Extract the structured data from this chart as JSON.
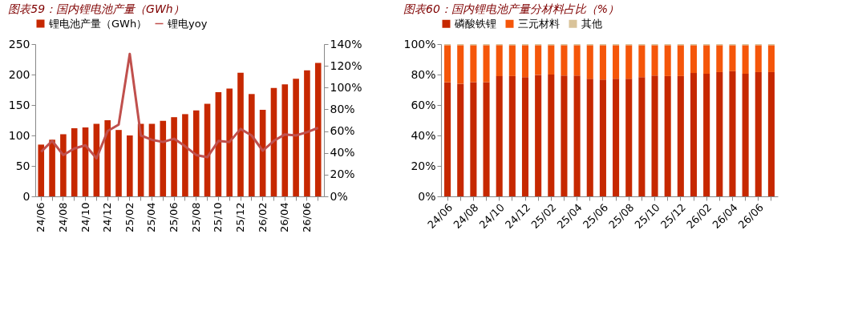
{
  "chart_data": [
    {
      "type": "bar",
      "title": "图表59：国内锂电池产量（GWh）",
      "categories": [
        "24/06",
        null,
        "24/08",
        null,
        "24/10",
        null,
        "24/12",
        null,
        "25/02",
        null,
        "25/04",
        null,
        "25/06",
        null,
        "25/08",
        null,
        "25/10",
        null,
        "25/12",
        null,
        "26/02",
        null,
        "26/04",
        null,
        "26/06",
        null
      ],
      "series": [
        {
          "name": "锂电池产量（GWh）",
          "type": "bar",
          "axis": "y",
          "color": "#c62800",
          "values": [
            85,
            93,
            102,
            112,
            113,
            119,
            125,
            109,
            100,
            119,
            119,
            124,
            130,
            135,
            141,
            152,
            171,
            177,
            203,
            168,
            142,
            178,
            184,
            193,
            207,
            219
          ]
        },
        {
          "name": "锂电yoy",
          "type": "line",
          "axis": "y2",
          "color": "#c0504d",
          "values": [
            41,
            51,
            38,
            44,
            47,
            35,
            60,
            66,
            131,
            56,
            52,
            50,
            53,
            46,
            38,
            36,
            51,
            50,
            62,
            56,
            42,
            51,
            57,
            56,
            59,
            63
          ]
        }
      ],
      "ylim": [
        0,
        250
      ],
      "yticks": [
        0,
        50,
        100,
        150,
        200,
        250
      ],
      "y2lim": [
        0,
        140
      ],
      "y2ticks": [
        {
          "value": 0,
          "label": "0%"
        },
        {
          "value": 20,
          "label": "20%"
        },
        {
          "value": 40,
          "label": "40%"
        },
        {
          "value": 60,
          "label": "60%"
        },
        {
          "value": 80,
          "label": "80%"
        },
        {
          "value": 100,
          "label": "100%"
        },
        {
          "value": 120,
          "label": "120%"
        },
        {
          "value": 140,
          "label": "140%"
        }
      ],
      "legend": "top",
      "grid": false,
      "marker": "none",
      "line_style": "solid"
    },
    {
      "type": "bar",
      "title": "图表60：国内锂电池产量分材料占比（%）",
      "stacked": true,
      "categories": [
        "24/06",
        null,
        "24/08",
        null,
        "24/10",
        null,
        "24/12",
        null,
        "25/02",
        null,
        "25/04",
        null,
        "25/06",
        null,
        "25/08",
        null,
        "25/10",
        null,
        "25/12",
        null,
        "26/02",
        null,
        "26/04",
        null,
        "26/06",
        null
      ],
      "series": [
        {
          "name": "磷酸铁锂",
          "color": "#c62800",
          "values": [
            74.9,
            74,
            75,
            75,
            79,
            79,
            78.3,
            79.8,
            80,
            79.4,
            79.4,
            77.2,
            76.7,
            77.2,
            77.2,
            78.3,
            79.4,
            79,
            79,
            81,
            80.5,
            81.6,
            82.2,
            80.5,
            81.6,
            81.6
          ]
        },
        {
          "name": "三元材料",
          "color": "#f5560a",
          "values": [
            24.4,
            25.3,
            24.3,
            24.3,
            20.3,
            20.3,
            21,
            19.5,
            19.3,
            19.9,
            19.9,
            22.1,
            22.6,
            22.1,
            22.1,
            21,
            19.9,
            20.3,
            20.3,
            18.3,
            18.8,
            17.7,
            17.1,
            18.8,
            17.7,
            17.7
          ]
        },
        {
          "name": "其他",
          "color": "#d9c39a",
          "values": [
            0.7,
            0.7,
            0.7,
            0.7,
            0.7,
            0.7,
            0.7,
            0.7,
            0.7,
            0.7,
            0.7,
            0.7,
            0.7,
            0.7,
            0.7,
            0.7,
            0.7,
            0.7,
            0.7,
            0.7,
            0.7,
            0.7,
            0.7,
            0.7,
            0.7,
            0.7
          ]
        }
      ],
      "ylim": [
        0,
        100
      ],
      "yticks": [
        {
          "value": 0,
          "label": "0%"
        },
        {
          "value": 20,
          "label": "20%"
        },
        {
          "value": 40,
          "label": "40%"
        },
        {
          "value": 60,
          "label": "60%"
        },
        {
          "value": 80,
          "label": "80%"
        },
        {
          "value": 100,
          "label": "100%"
        }
      ],
      "legend": "top",
      "grid": false
    }
  ]
}
